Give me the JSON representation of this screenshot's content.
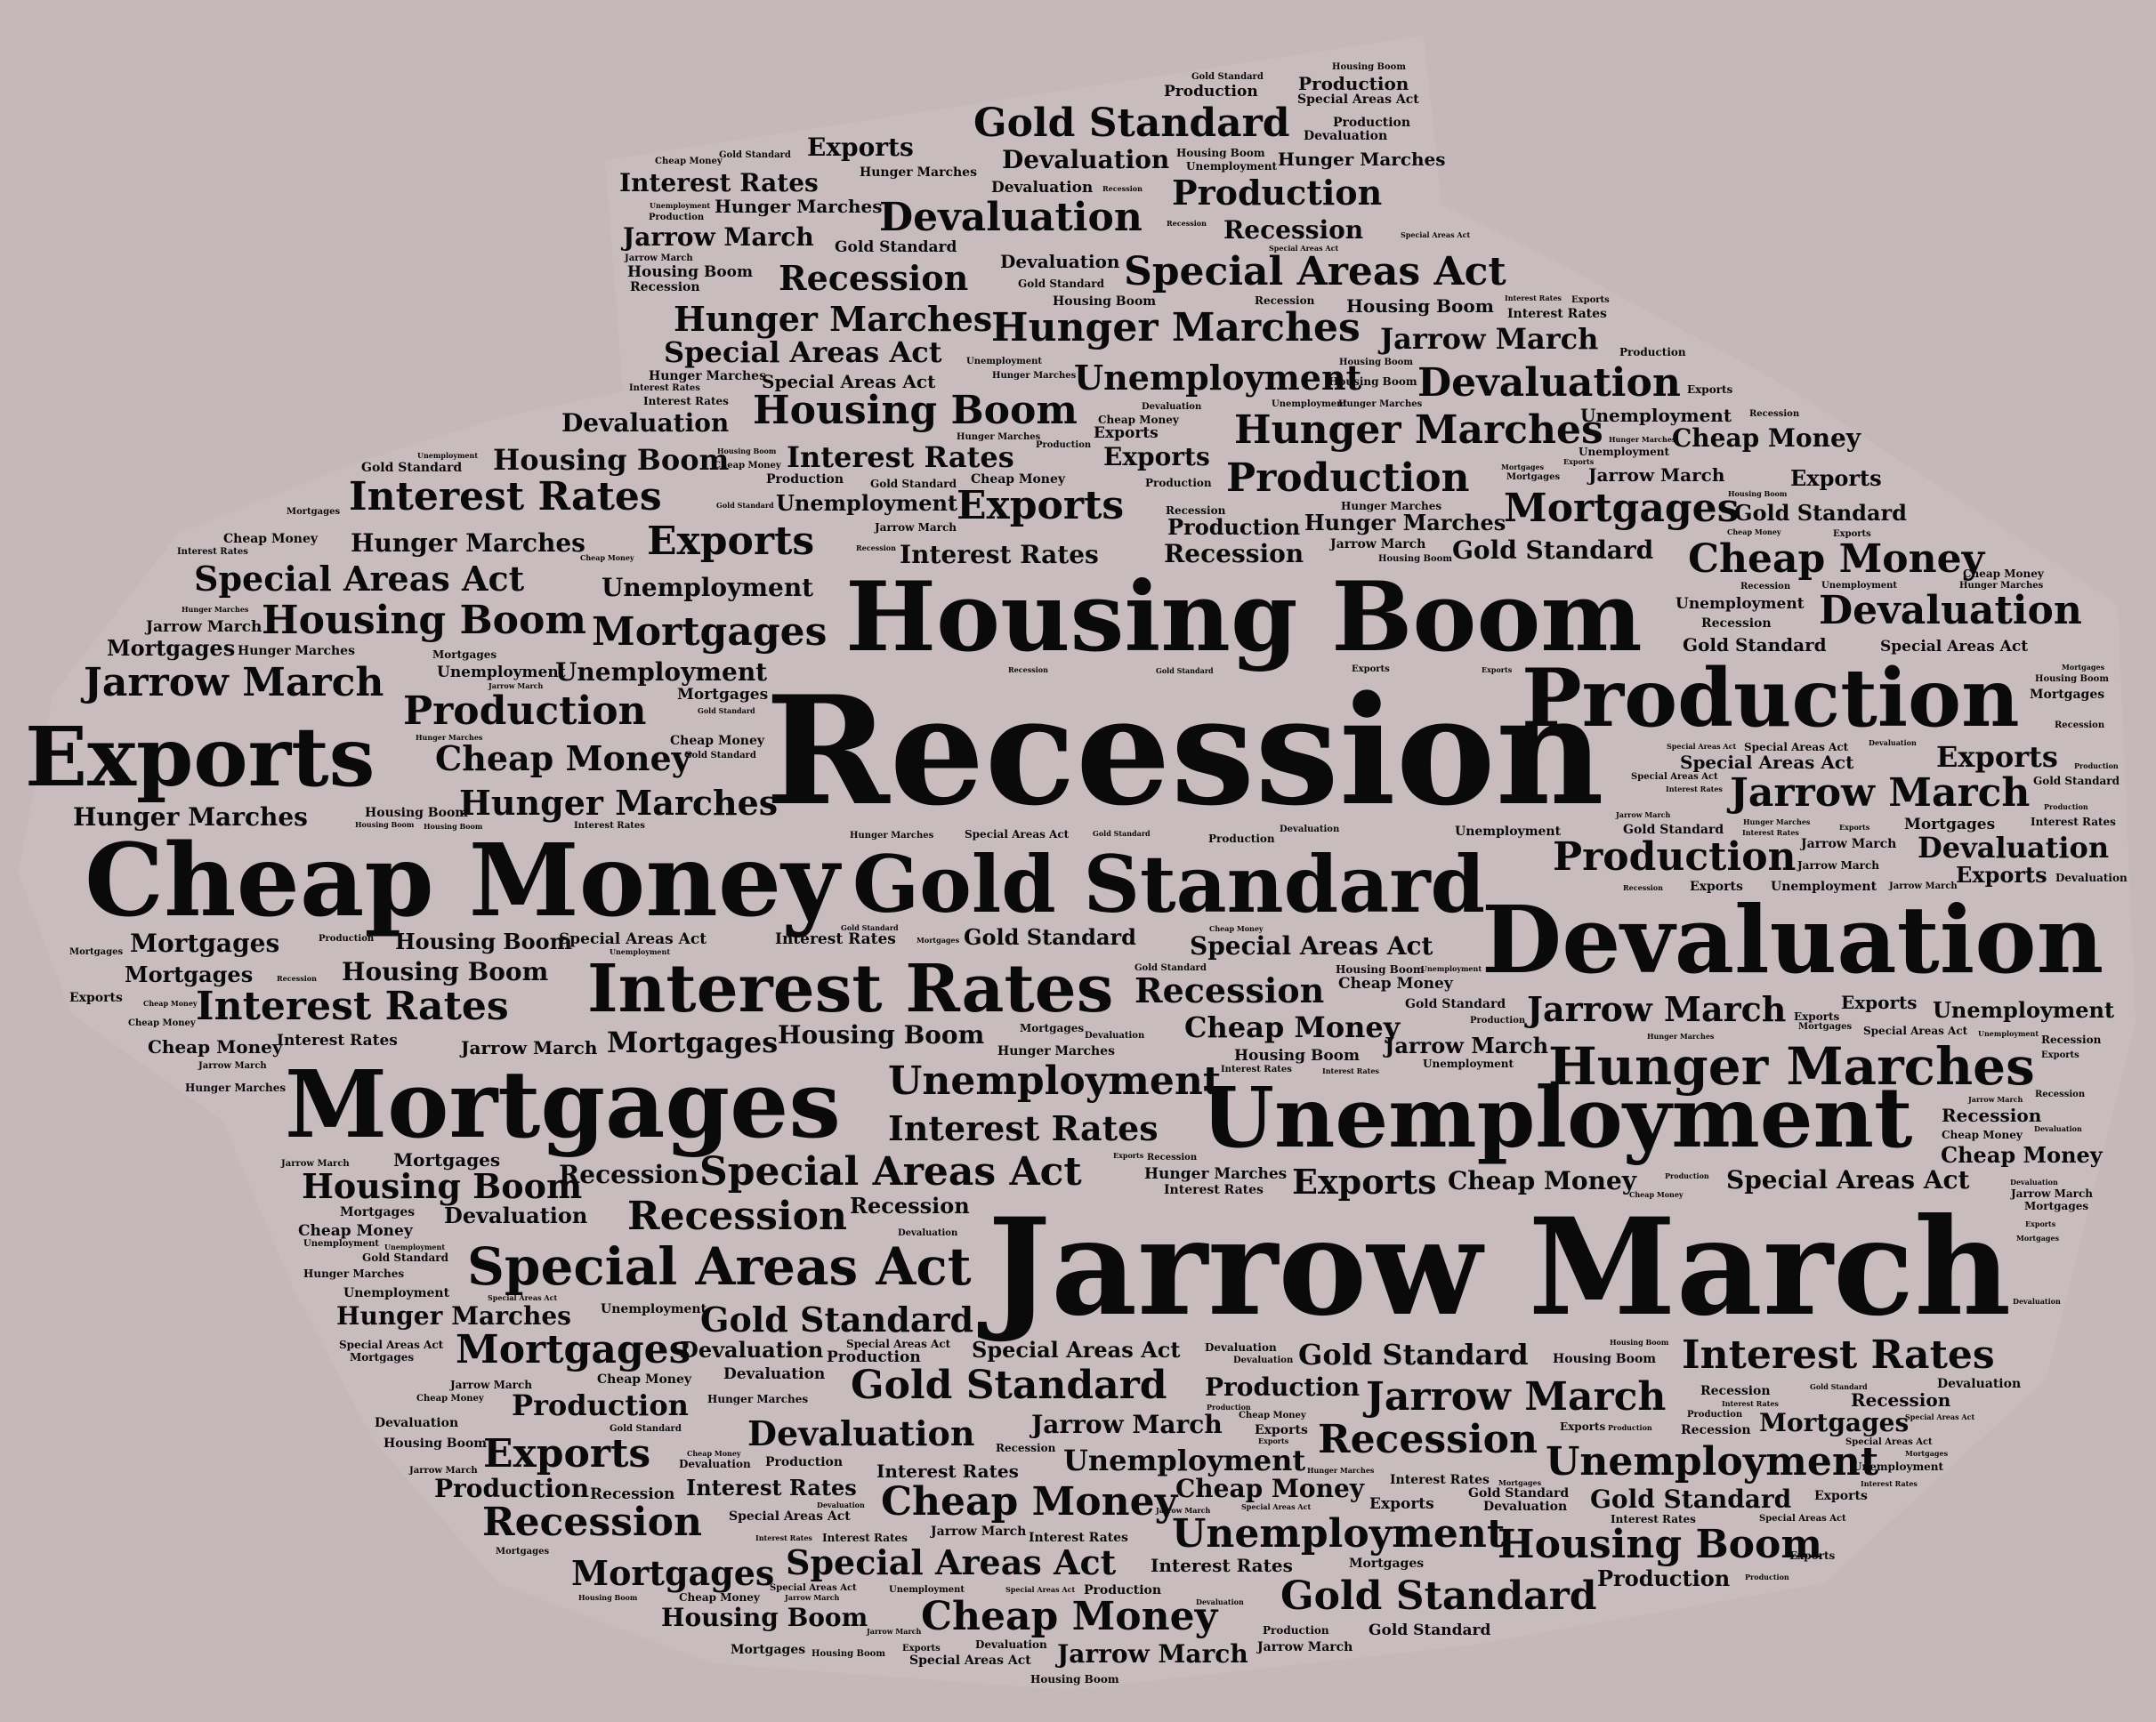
{
  "colors": {
    "background": "#c5b8ba",
    "text": "#0a0a0a"
  },
  "words": [
    "Recession",
    "Jarrow March",
    "Housing Boom",
    "Cheap Money",
    "Devaluation",
    "Unemployment",
    "Production",
    "Exports",
    "Mortgages",
    "Gold Standard",
    "Interest Rates",
    "Special Areas Act",
    "Hunger Marches"
  ]
}
